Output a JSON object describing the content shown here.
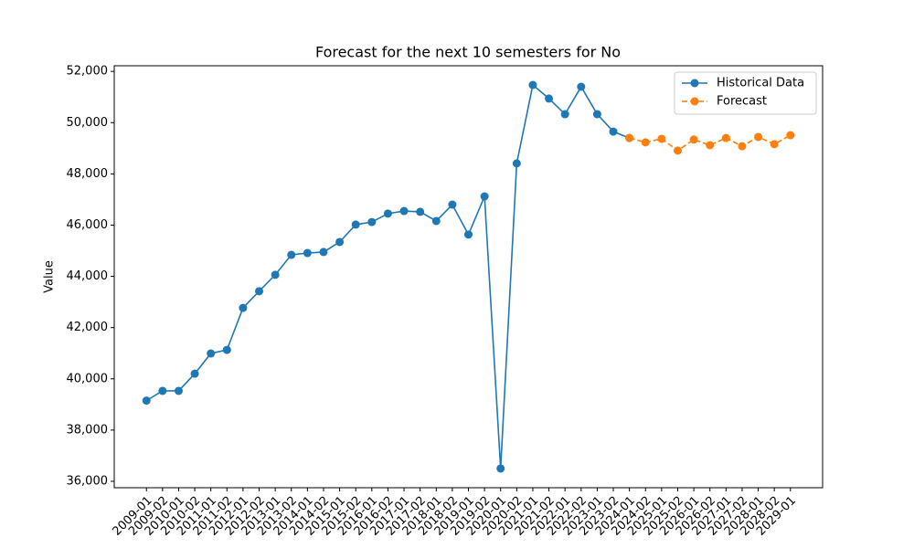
{
  "chart_data": {
    "type": "line",
    "title": "Forecast for the next 10 semesters for No",
    "y_label": "Value",
    "categories": [
      "2009-01",
      "2009-02",
      "2010-01",
      "2010-02",
      "2011-01",
      "2011-02",
      "2012-01",
      "2012-02",
      "2013-01",
      "2013-02",
      "2014-01",
      "2014-02",
      "2015-01",
      "2015-02",
      "2016-01",
      "2016-02",
      "2017-01",
      "2017-02",
      "2018-01",
      "2018-02",
      "2019-01",
      "2019-02",
      "2020-01",
      "2020-02",
      "2021-01",
      "2021-02",
      "2022-01",
      "2022-02",
      "2023-01",
      "2023-02",
      "2024-01",
      "2024-02",
      "2025-01",
      "2025-02",
      "2026-01",
      "2026-02",
      "2027-01",
      "2027-02",
      "2028-01",
      "2028-02",
      "2029-01"
    ],
    "series": [
      {
        "name": "Historical Data",
        "color": "#1f77b4",
        "dash": "solid",
        "values": [
          39150,
          39530,
          39530,
          40200,
          40990,
          41130,
          42770,
          43420,
          44060,
          44840,
          44910,
          44950,
          45340,
          46020,
          46120,
          46450,
          46550,
          46520,
          46160,
          46800,
          45630,
          47120,
          36500,
          48410,
          51470,
          50940,
          50330,
          51400,
          50330,
          49650,
          49400,
          null,
          null,
          null,
          null,
          null,
          null,
          null,
          null,
          null,
          null
        ]
      },
      {
        "name": "Forecast",
        "color": "#ff7f0e",
        "dash": "dashed",
        "values": [
          null,
          null,
          null,
          null,
          null,
          null,
          null,
          null,
          null,
          null,
          null,
          null,
          null,
          null,
          null,
          null,
          null,
          null,
          null,
          null,
          null,
          null,
          null,
          null,
          null,
          null,
          null,
          null,
          null,
          null,
          49400,
          49230,
          49370,
          48910,
          49340,
          49120,
          49400,
          49080,
          49440,
          49160,
          49510
        ]
      }
    ],
    "ylim": [
      35750,
      52220
    ],
    "yticks": [
      {
        "value": 36000,
        "label": "36,000"
      },
      {
        "value": 38000,
        "label": "38,000"
      },
      {
        "value": 40000,
        "label": "40,000"
      },
      {
        "value": 42000,
        "label": "42,000"
      },
      {
        "value": 44000,
        "label": "44,000"
      },
      {
        "value": 46000,
        "label": "46,000"
      },
      {
        "value": 48000,
        "label": "48,000"
      },
      {
        "value": 50000,
        "label": "50,000"
      },
      {
        "value": 52000,
        "label": "52,000"
      }
    ],
    "grid": false,
    "legend": "upper right"
  }
}
